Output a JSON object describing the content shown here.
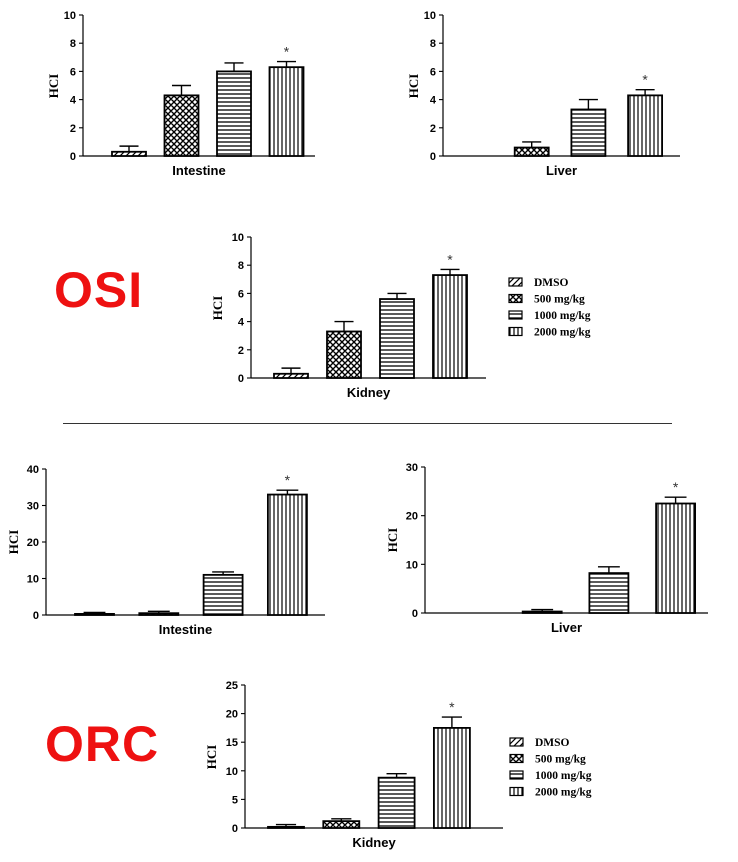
{
  "groups": {
    "osi": "OSI",
    "orc": "ORC"
  },
  "legend": [
    "DMSO",
    "500 mg/kg",
    "1000 mg/kg",
    "2000 mg/kg"
  ],
  "chart_data": [
    {
      "id": "osi-intestine",
      "type": "bar",
      "title": "",
      "xlabel": "Intestine",
      "ylabel": "HCI",
      "categories": [
        "DMSO",
        "500 mg/kg",
        "1000 mg/kg",
        "2000 mg/kg"
      ],
      "values": [
        0.3,
        4.3,
        6.0,
        6.3
      ],
      "errors": [
        0.4,
        0.7,
        0.6,
        0.4
      ],
      "significance": [
        "",
        "",
        "",
        "*"
      ],
      "ylim": [
        0,
        10
      ],
      "yticks": [
        0,
        2,
        4,
        6,
        8,
        10
      ]
    },
    {
      "id": "osi-liver",
      "type": "bar",
      "title": "",
      "xlabel": "Liver",
      "ylabel": "HCI",
      "categories": [
        "DMSO",
        "500 mg/kg",
        "1000 mg/kg",
        "2000 mg/kg"
      ],
      "values": [
        0,
        0.6,
        3.3,
        4.3
      ],
      "errors": [
        0,
        0.4,
        0.7,
        0.4
      ],
      "significance": [
        "",
        "",
        "",
        "*"
      ],
      "ylim": [
        0,
        10
      ],
      "yticks": [
        0,
        2,
        4,
        6,
        8,
        10
      ]
    },
    {
      "id": "osi-kidney",
      "type": "bar",
      "title": "",
      "xlabel": "Kidney",
      "ylabel": "HCI",
      "categories": [
        "DMSO",
        "500 mg/kg",
        "1000 mg/kg",
        "2000 mg/kg"
      ],
      "values": [
        0.3,
        3.3,
        5.6,
        7.3
      ],
      "errors": [
        0.4,
        0.7,
        0.4,
        0.4
      ],
      "significance": [
        "",
        "",
        "",
        "*"
      ],
      "ylim": [
        0,
        10
      ],
      "yticks": [
        0,
        2,
        4,
        6,
        8,
        10
      ]
    },
    {
      "id": "orc-intestine",
      "type": "bar",
      "title": "",
      "xlabel": "Intestine",
      "ylabel": "HCI",
      "categories": [
        "DMSO",
        "500 mg/kg",
        "1000 mg/kg",
        "2000 mg/kg"
      ],
      "values": [
        0.3,
        0.5,
        11,
        33
      ],
      "errors": [
        0.4,
        0.5,
        0.8,
        1.2
      ],
      "significance": [
        "",
        "",
        "",
        "*"
      ],
      "ylim": [
        0,
        40
      ],
      "yticks": [
        0,
        10,
        20,
        30,
        40
      ]
    },
    {
      "id": "orc-liver",
      "type": "bar",
      "title": "",
      "xlabel": "Liver",
      "ylabel": "HCI",
      "categories": [
        "DMSO",
        "500 mg/kg",
        "1000 mg/kg",
        "2000 mg/kg"
      ],
      "values": [
        0,
        0.3,
        8.2,
        22.5
      ],
      "errors": [
        0,
        0.4,
        1.3,
        1.3
      ],
      "significance": [
        "",
        "",
        "",
        "*"
      ],
      "ylim": [
        0,
        30
      ],
      "yticks": [
        0,
        10,
        20,
        30
      ]
    },
    {
      "id": "orc-kidney",
      "type": "bar",
      "title": "",
      "xlabel": "Kidney",
      "ylabel": "HCI",
      "categories": [
        "DMSO",
        "500 mg/kg",
        "1000 mg/kg",
        "2000 mg/kg"
      ],
      "values": [
        0.2,
        1.2,
        8.8,
        17.5
      ],
      "errors": [
        0.4,
        0.4,
        0.7,
        1.9
      ],
      "significance": [
        "",
        "",
        "",
        "*"
      ],
      "ylim": [
        0,
        25
      ],
      "yticks": [
        0,
        5,
        10,
        15,
        20,
        25
      ]
    }
  ]
}
